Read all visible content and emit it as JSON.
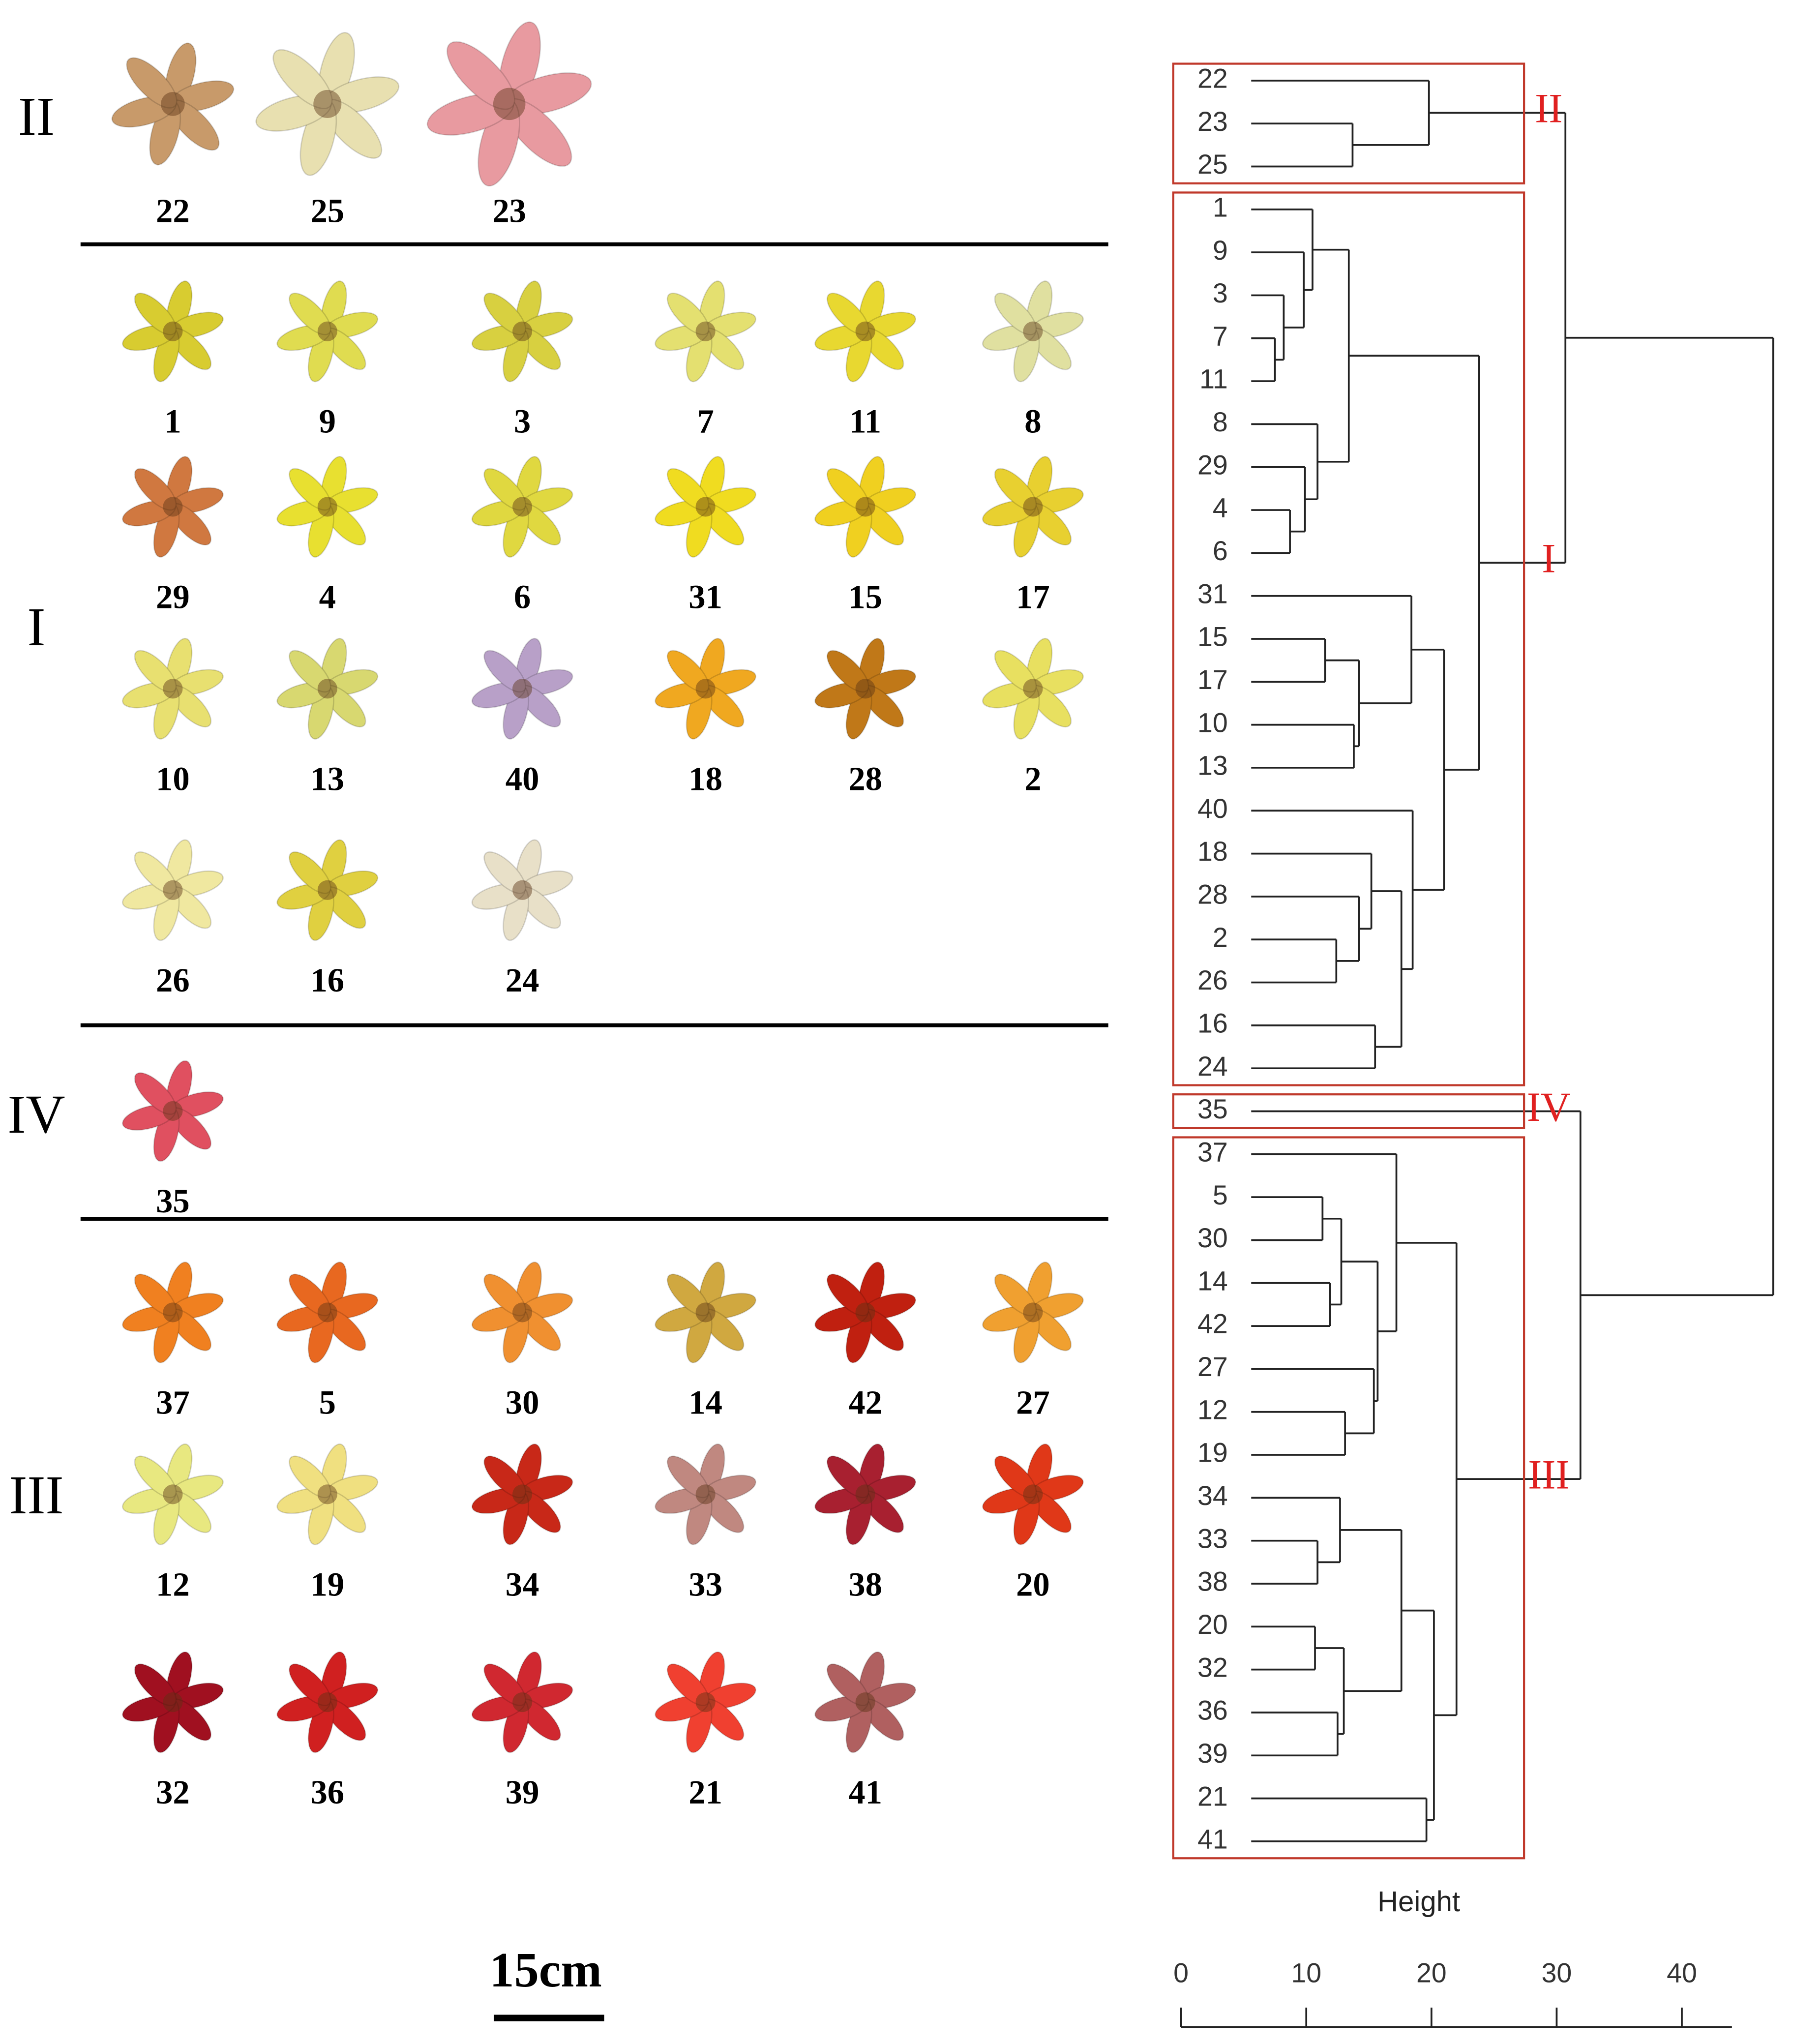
{
  "chart_data": {
    "type": "dendrogram",
    "x_label": "Height",
    "xlim": [
      0,
      44
    ],
    "xticks": [
      0,
      10,
      20,
      30,
      40
    ],
    "tree": {
      "height": 47.3,
      "children": [
        {
          "height": 30.7,
          "children": [
            {
              "cluster": "II",
              "height": 19.8,
              "children": [
                {
                  "label": "22"
                },
                {
                  "height": 13.7,
                  "children": [
                    {
                      "label": "23"
                    },
                    {
                      "label": "25"
                    }
                  ]
                }
              ]
            },
            {
              "cluster": "I",
              "height": 23.8,
              "children": [
                {
                  "height": 13.4,
                  "children": [
                    {
                      "height": 10.5,
                      "children": [
                        {
                          "label": "1"
                        },
                        {
                          "height": 9.8,
                          "children": [
                            {
                              "label": "9"
                            },
                            {
                              "height": 8.2,
                              "children": [
                                {
                                  "label": "3"
                                },
                                {
                                  "height": 7.5,
                                  "children": [
                                    {
                                      "label": "7"
                                    },
                                    {
                                      "label": "11"
                                    }
                                  ]
                                }
                              ]
                            }
                          ]
                        }
                      ]
                    },
                    {
                      "height": 10.9,
                      "children": [
                        {
                          "label": "8"
                        },
                        {
                          "height": 9.9,
                          "children": [
                            {
                              "label": "29"
                            },
                            {
                              "height": 8.7,
                              "children": [
                                {
                                  "label": "4"
                                },
                                {
                                  "label": "6"
                                }
                              ]
                            }
                          ]
                        }
                      ]
                    }
                  ]
                },
                {
                  "height": 21.0,
                  "children": [
                    {
                      "height": 18.4,
                      "children": [
                        {
                          "label": "31"
                        },
                        {
                          "height": 14.2,
                          "children": [
                            {
                              "height": 11.5,
                              "children": [
                                {
                                  "label": "15"
                                },
                                {
                                  "label": "17"
                                }
                              ]
                            },
                            {
                              "height": 13.8,
                              "children": [
                                {
                                  "label": "10"
                                },
                                {
                                  "label": "13"
                                }
                              ]
                            }
                          ]
                        }
                      ]
                    },
                    {
                      "height": 18.5,
                      "children": [
                        {
                          "label": "40"
                        },
                        {
                          "height": 17.6,
                          "children": [
                            {
                              "height": 15.2,
                              "children": [
                                {
                                  "label": "18"
                                },
                                {
                                  "height": 14.2,
                                  "children": [
                                    {
                                      "label": "28"
                                    },
                                    {
                                      "height": 12.4,
                                      "children": [
                                        {
                                          "label": "2"
                                        },
                                        {
                                          "label": "26"
                                        }
                                      ]
                                    }
                                  ]
                                }
                              ]
                            },
                            {
                              "height": 15.5,
                              "children": [
                                {
                                  "label": "16"
                                },
                                {
                                  "label": "24"
                                }
                              ]
                            }
                          ]
                        }
                      ]
                    }
                  ]
                }
              ]
            }
          ]
        },
        {
          "height": 31.9,
          "children": [
            {
              "cluster": "IV",
              "label": "35"
            },
            {
              "cluster": "III",
              "height": 22.0,
              "children": [
                {
                  "height": 17.2,
                  "children": [
                    {
                      "label": "37"
                    },
                    {
                      "height": 15.7,
                      "children": [
                        {
                          "height": 12.8,
                          "children": [
                            {
                              "height": 11.3,
                              "children": [
                                {
                                  "label": "5"
                                },
                                {
                                  "label": "30"
                                }
                              ]
                            },
                            {
                              "height": 11.9,
                              "children": [
                                {
                                  "label": "14"
                                },
                                {
                                  "label": "42"
                                }
                              ]
                            }
                          ]
                        },
                        {
                          "height": 15.4,
                          "children": [
                            {
                              "label": "27"
                            },
                            {
                              "height": 13.1,
                              "children": [
                                {
                                  "label": "12"
                                },
                                {
                                  "label": "19"
                                }
                              ]
                            }
                          ]
                        }
                      ]
                    }
                  ]
                },
                {
                  "height": 20.2,
                  "children": [
                    {
                      "height": 17.6,
                      "children": [
                        {
                          "height": 12.7,
                          "children": [
                            {
                              "label": "34"
                            },
                            {
                              "height": 10.9,
                              "children": [
                                {
                                  "label": "33"
                                },
                                {
                                  "label": "38"
                                }
                              ]
                            }
                          ]
                        },
                        {
                          "height": 13.0,
                          "children": [
                            {
                              "height": 10.7,
                              "children": [
                                {
                                  "label": "20"
                                },
                                {
                                  "label": "32"
                                }
                              ]
                            },
                            {
                              "height": 12.5,
                              "children": [
                                {
                                  "label": "36"
                                },
                                {
                                  "label": "39"
                                }
                              ]
                            }
                          ]
                        }
                      ]
                    },
                    {
                      "height": 19.6,
                      "children": [
                        {
                          "label": "21"
                        },
                        {
                          "label": "41"
                        }
                      ]
                    }
                  ]
                }
              ]
            }
          ]
        }
      ]
    }
  },
  "panel": {
    "scale_label": "15cm",
    "groups": [
      {
        "label": "II",
        "rows": [
          [
            {
              "label": "22",
              "color": "#c89a6a"
            },
            {
              "label": "25",
              "color": "#e8e0b0"
            },
            {
              "label": "23",
              "color": "#e89aa0"
            }
          ]
        ]
      },
      {
        "label": "I",
        "rows": [
          [
            {
              "label": "1",
              "color": "#d8cc30"
            },
            {
              "label": "9",
              "color": "#e0dc50"
            },
            {
              "label": "3",
              "color": "#d8d040"
            },
            {
              "label": "7",
              "color": "#e4e070"
            },
            {
              "label": "11",
              "color": "#e8d830"
            },
            {
              "label": "8",
              "color": "#e0e0a0"
            }
          ],
          [
            {
              "label": "29",
              "color": "#d07840"
            },
            {
              "label": "4",
              "color": "#e8e030"
            },
            {
              "label": "6",
              "color": "#e0d840"
            },
            {
              "label": "31",
              "color": "#f0dc20"
            },
            {
              "label": "15",
              "color": "#f0d020"
            },
            {
              "label": "17",
              "color": "#e8d030"
            }
          ],
          [
            {
              "label": "10",
              "color": "#e8e070"
            },
            {
              "label": "13",
              "color": "#d8d870"
            },
            {
              "label": "40",
              "color": "#b8a0c8"
            },
            {
              "label": "18",
              "color": "#f0a820"
            },
            {
              "label": "28",
              "color": "#c07818"
            },
            {
              "label": "2",
              "color": "#e8e060"
            }
          ],
          [
            {
              "label": "26",
              "color": "#f0e8a0"
            },
            {
              "label": "16",
              "color": "#e0d040"
            },
            {
              "label": "24",
              "color": "#e8e0c8"
            }
          ]
        ]
      },
      {
        "label": "IV",
        "rows": [
          [
            {
              "label": "35",
              "color": "#e05060"
            }
          ]
        ]
      },
      {
        "label": "III",
        "rows": [
          [
            {
              "label": "37",
              "color": "#f08020"
            },
            {
              "label": "5",
              "color": "#e86820"
            },
            {
              "label": "30",
              "color": "#f09030"
            },
            {
              "label": "14",
              "color": "#d0a840"
            },
            {
              "label": "42",
              "color": "#c02010"
            },
            {
              "label": "27",
              "color": "#f0a030"
            }
          ],
          [
            {
              "label": "12",
              "color": "#e8e880"
            },
            {
              "label": "19",
              "color": "#f0e080"
            },
            {
              "label": "34",
              "color": "#c82818"
            },
            {
              "label": "33",
              "color": "#c08880"
            },
            {
              "label": "38",
              "color": "#a82030"
            },
            {
              "label": "20",
              "color": "#e03818"
            }
          ],
          [
            {
              "label": "32",
              "color": "#a01020"
            },
            {
              "label": "36",
              "color": "#d02020"
            },
            {
              "label": "39",
              "color": "#d02830"
            },
            {
              "label": "21",
              "color": "#f04030"
            },
            {
              "label": "41",
              "color": "#b06060"
            }
          ]
        ]
      }
    ]
  }
}
